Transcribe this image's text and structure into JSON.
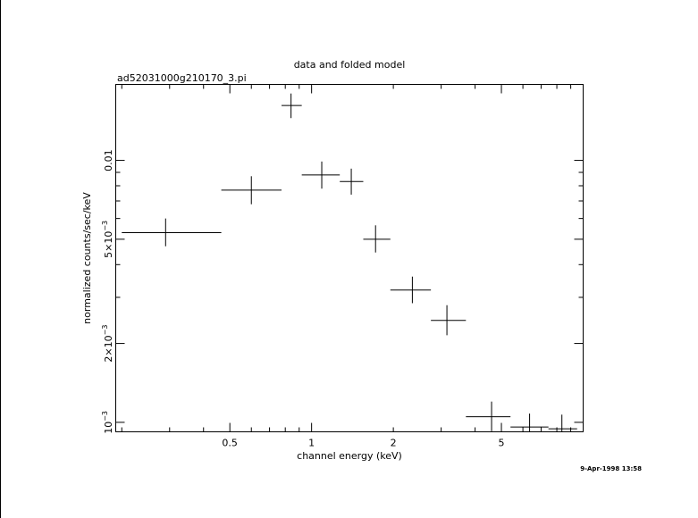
{
  "chart_data": {
    "type": "scatter",
    "title": "data and folded model",
    "subtitle": "ad52031000g210170_3.pi",
    "xlabel": "channel energy (keV)",
    "ylabel": "normalized counts/sec/keV",
    "xscale": "log",
    "yscale": "log",
    "xlim": [
      0.19,
      10.0
    ],
    "ylim": [
      0.00092,
      0.0195
    ],
    "x_tick_labels": [
      {
        "value": 0.5,
        "label": "0.5"
      },
      {
        "value": 1,
        "label": "1"
      },
      {
        "value": 2,
        "label": "2"
      },
      {
        "value": 5,
        "label": "5"
      }
    ],
    "y_tick_labels": [
      {
        "value": 0.001,
        "label": "10",
        "exp": "−3"
      },
      {
        "value": 0.002,
        "label": "2×10",
        "exp": "−3"
      },
      {
        "value": 0.005,
        "label": "5×10",
        "exp": "−3"
      },
      {
        "value": 0.01,
        "label": "0.01",
        "exp": ""
      }
    ],
    "series": [
      {
        "points": [
          {
            "x": 0.29,
            "xlo": 0.2,
            "xhi": 0.465,
            "y": 0.0053,
            "ylo": 0.0047,
            "yhi": 0.006
          },
          {
            "x": 0.6,
            "xlo": 0.465,
            "xhi": 0.775,
            "y": 0.0077,
            "ylo": 0.0068,
            "yhi": 0.0087
          },
          {
            "x": 0.84,
            "xlo": 0.775,
            "xhi": 0.92,
            "y": 0.0162,
            "ylo": 0.0145,
            "yhi": 0.018
          },
          {
            "x": 1.09,
            "xlo": 0.92,
            "xhi": 1.27,
            "y": 0.0088,
            "ylo": 0.0078,
            "yhi": 0.0099
          },
          {
            "x": 1.4,
            "xlo": 1.27,
            "xhi": 1.55,
            "y": 0.0083,
            "ylo": 0.0074,
            "yhi": 0.0093
          },
          {
            "x": 1.72,
            "xlo": 1.55,
            "xhi": 1.95,
            "y": 0.005,
            "ylo": 0.00445,
            "yhi": 0.00565
          },
          {
            "x": 2.35,
            "xlo": 1.95,
            "xhi": 2.75,
            "y": 0.0032,
            "ylo": 0.00285,
            "yhi": 0.0036
          },
          {
            "x": 3.15,
            "xlo": 2.75,
            "xhi": 3.7,
            "y": 0.00245,
            "ylo": 0.00215,
            "yhi": 0.0028
          },
          {
            "x": 4.6,
            "xlo": 3.7,
            "xhi": 5.4,
            "y": 0.00105,
            "ylo": 0.000925,
            "yhi": 0.0012
          },
          {
            "x": 6.35,
            "xlo": 5.4,
            "xhi": 7.45,
            "y": 0.00096,
            "ylo": 0.00086,
            "yhi": 0.00108
          },
          {
            "x": 8.35,
            "xlo": 7.45,
            "xhi": 9.5,
            "y": 0.000945,
            "ylo": 0.00084,
            "yhi": 0.00107
          }
        ]
      }
    ],
    "timestamp": "9-Apr-1998 13:58",
    "grid": false
  }
}
